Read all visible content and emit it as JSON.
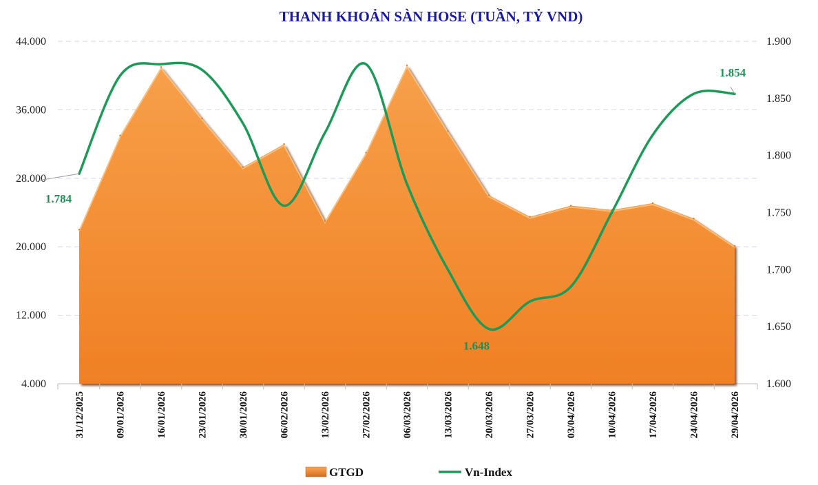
{
  "chart_data": {
    "type": "area+line",
    "title": "THANH KHOẢN SÀN HOSE (TUẦN, TỶ VND)",
    "categories": [
      "31/12/2025",
      "09/01/2026",
      "16/01/2026",
      "23/01/2026",
      "30/01/2026",
      "06/02/2026",
      "13/02/2026",
      "27/02/2026",
      "06/03/2026",
      "13/03/2026",
      "20/03/2026",
      "27/03/2026",
      "03/04/2026",
      "10/04/2026",
      "17/04/2026",
      "24/04/2026",
      "29/04/2026"
    ],
    "series": [
      {
        "name": "GTGD",
        "type": "area",
        "axis": "left",
        "color": "#f28a2e",
        "values": [
          22000,
          33000,
          41000,
          35000,
          29300,
          32000,
          23000,
          31000,
          41200,
          33500,
          26000,
          23500,
          24800,
          24300,
          25100,
          23300,
          20100
        ]
      },
      {
        "name": "Vn-Index",
        "type": "line",
        "axis": "right",
        "color": "#1c9a58",
        "values": [
          1784,
          1870,
          1880,
          1875,
          1828,
          1756,
          1820,
          1880,
          1775,
          1700,
          1648,
          1672,
          1685,
          1750,
          1818,
          1854,
          1854
        ]
      }
    ],
    "y_left": {
      "min": 4000,
      "max": 44000,
      "ticks": [
        4000,
        12000,
        20000,
        28000,
        36000,
        44000
      ],
      "tick_labels": [
        "4.000",
        "12.000",
        "20.000",
        "28.000",
        "36.000",
        "44.000"
      ]
    },
    "y_right": {
      "min": 1600,
      "max": 1900,
      "ticks": [
        1600,
        1650,
        1700,
        1750,
        1800,
        1850,
        1900
      ],
      "tick_labels": [
        "1.600",
        "1.650",
        "1.700",
        "1.750",
        "1.800",
        "1.850",
        "1.900"
      ]
    },
    "annotations": [
      {
        "label": "1.784",
        "index": 0
      },
      {
        "label": "1.648",
        "index": 10
      },
      {
        "label": "1.854",
        "index": 16
      }
    ],
    "grid": true,
    "legend_position": "bottom",
    "legend": [
      {
        "label": "GTGD",
        "swatch": "area",
        "color": "#f28a2e"
      },
      {
        "label": "Vn-Index",
        "swatch": "line",
        "color": "#1c9a58"
      }
    ]
  }
}
